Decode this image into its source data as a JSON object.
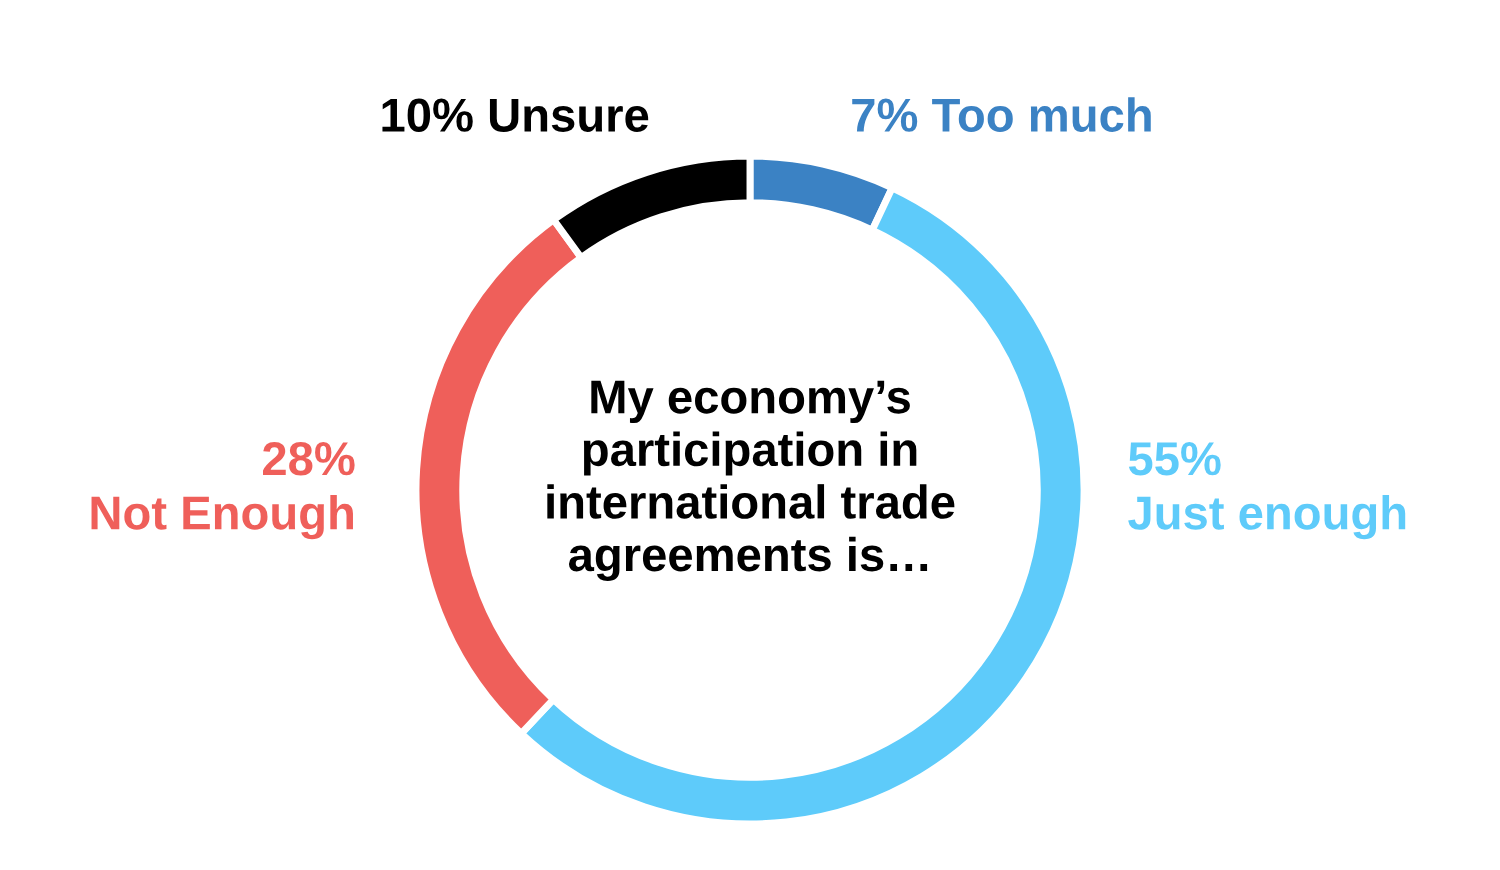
{
  "chart_data": {
    "type": "donut",
    "title": "My economy’s\nparticipation in\ninternational trade\nagreements is…",
    "categories": [
      "Too much",
      "Just enough",
      "Not Enough",
      "Unsure"
    ],
    "values": [
      7,
      55,
      28,
      10
    ],
    "value_labels": [
      "7%",
      "55%",
      "28%",
      "10%"
    ],
    "colors": [
      "#3b82c4",
      "#5ecbfa",
      "#ef5f5a",
      "#000000"
    ],
    "legend": false
  }
}
